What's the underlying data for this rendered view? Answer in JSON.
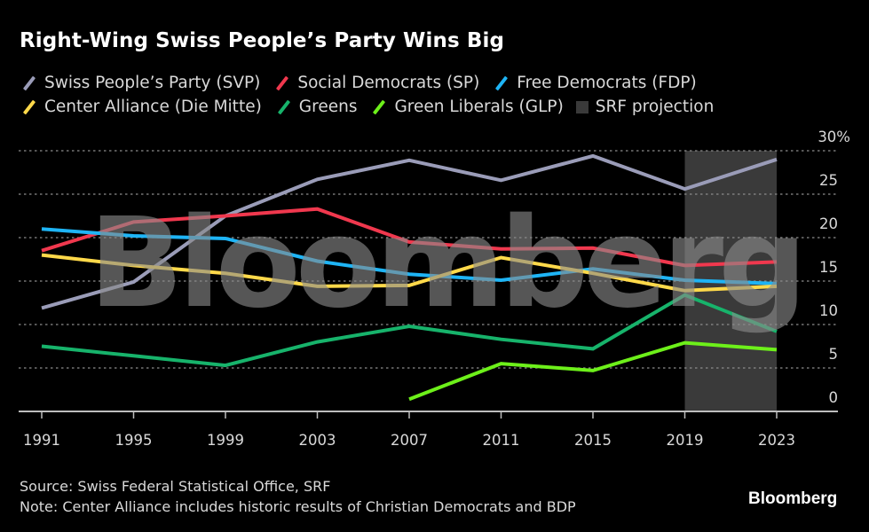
{
  "title": "Right-Wing Swiss People’s Party Wins Big",
  "legend": [
    {
      "label": "Swiss People’s Party (SVP)",
      "color": "#9a9cb8",
      "kind": "line"
    },
    {
      "label": "Social Democrats (SP)",
      "color": "#f0384e",
      "kind": "line"
    },
    {
      "label": "Free Democrats (FDP)",
      "color": "#1eb4f5",
      "kind": "line"
    },
    {
      "label": "Center Alliance (Die Mitte)",
      "color": "#ffd94a",
      "kind": "line"
    },
    {
      "label": "Greens",
      "color": "#17b36b",
      "kind": "line"
    },
    {
      "label": "Green Liberals (GLP)",
      "color": "#6df01a",
      "kind": "line"
    },
    {
      "label": "SRF projection",
      "color": "#3a3a3a",
      "kind": "box"
    }
  ],
  "footer": {
    "source": "Source: Swiss Federal Statistical Office, SRF",
    "note": "Note: Center Alliance includes historic results of Christian Democrats and BDP"
  },
  "brand": "Bloomberg",
  "watermark": "Bloomberg",
  "chart_data": {
    "type": "line",
    "title": "Right-Wing Swiss People’s Party Wins Big",
    "xlabel": "",
    "ylabel": "",
    "x": [
      1991,
      1995,
      1999,
      2003,
      2007,
      2011,
      2015,
      2019,
      2023
    ],
    "x_tick_labels": [
      "1991",
      "1995",
      "1999",
      "2003",
      "2007",
      "2011",
      "2015",
      "2019",
      "2023"
    ],
    "y_tick_labels": [
      "0",
      "5",
      "10",
      "15",
      "20",
      "25",
      "30%"
    ],
    "y_ticks": [
      0,
      5,
      10,
      15,
      20,
      25,
      30
    ],
    "ylim": [
      0,
      30
    ],
    "grid": true,
    "y_axis_side": "right",
    "legend_position": "top-left",
    "shaded_region": {
      "label": "SRF projection",
      "x_start": 2019,
      "x_end": 2023,
      "color": "#3a3a3a"
    },
    "series": [
      {
        "name": "Swiss People’s Party (SVP)",
        "color": "#9a9cb8",
        "values": [
          11.9,
          14.9,
          22.5,
          26.7,
          28.9,
          26.6,
          29.4,
          25.6,
          29.0
        ]
      },
      {
        "name": "Social Democrats (SP)",
        "color": "#f0384e",
        "values": [
          18.5,
          21.8,
          22.5,
          23.3,
          19.5,
          18.7,
          18.8,
          16.8,
          17.2
        ]
      },
      {
        "name": "Free Democrats (FDP)",
        "color": "#1eb4f5",
        "values": [
          21.0,
          20.2,
          19.9,
          17.3,
          15.8,
          15.1,
          16.4,
          15.1,
          14.7
        ]
      },
      {
        "name": "Center Alliance (Die Mitte)",
        "color": "#ffd94a",
        "values": [
          18.0,
          16.8,
          15.9,
          14.4,
          14.5,
          17.7,
          15.9,
          13.9,
          14.4
        ]
      },
      {
        "name": "Greens",
        "color": "#17b36b",
        "values": [
          7.5,
          6.4,
          5.3,
          8.0,
          9.8,
          8.3,
          7.2,
          13.4,
          9.2
        ]
      },
      {
        "name": "Green Liberals (GLP)",
        "color": "#6df01a",
        "values": [
          null,
          null,
          null,
          null,
          1.4,
          5.5,
          4.7,
          7.9,
          7.1
        ]
      }
    ]
  }
}
